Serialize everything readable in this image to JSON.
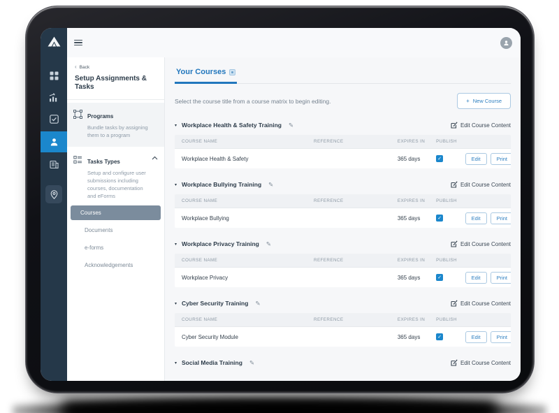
{
  "device": {
    "name": "tablet-mockup"
  },
  "topbar": {
    "menu_icon": "hamburger-icon",
    "avatar_icon": "user-avatar-icon"
  },
  "primary_nav": {
    "logo_icon": "mountain-logo",
    "items": [
      {
        "icon": "dashboard-grid-icon",
        "active": false
      },
      {
        "icon": "reports-chart-icon",
        "active": false
      },
      {
        "icon": "tasks-checkbox-icon",
        "active": false
      },
      {
        "icon": "people-icon",
        "active": true
      },
      {
        "icon": "company-building-icon",
        "active": false
      },
      {
        "icon": "location-pin-icon",
        "active": false
      }
    ]
  },
  "secondary_nav": {
    "back_chevron": "‹",
    "back_label": "Back",
    "title": "Setup Assignments & Tasks",
    "programs": {
      "label": "Programs",
      "description": "Bundle tasks by assigning them to a program"
    },
    "task_types": {
      "label": "Tasks Types",
      "description": "Setup and configure user submissions including courses, documentation and eForms",
      "expanded": true,
      "items": [
        {
          "label": "Courses",
          "active": true
        },
        {
          "label": "Documents",
          "active": false
        },
        {
          "label": "e-forms",
          "active": false
        },
        {
          "label": "Acknowledgements",
          "active": false
        }
      ]
    }
  },
  "main": {
    "tab_label": "Your Courses",
    "intro_text": "Select the course title from a course matrix to begin editing.",
    "new_course_plus": "+",
    "new_course_label": "New Course",
    "edit_course_content_label": "Edit Course Content",
    "table_headers": [
      "COURSE NAME",
      "REFERENCE",
      "EXPIRES IN",
      "PUBLISH"
    ],
    "row_actions": {
      "edit": "Edit",
      "print": "Print"
    },
    "glyphs": {
      "caret": "▾",
      "pencil": "✎",
      "check": "✓"
    },
    "sections": [
      {
        "title": "Workplace Health & Safety Training",
        "rows": [
          {
            "course_name": "Workplace Health & Safety",
            "reference": "",
            "expires_in": "365 days",
            "publish": true
          }
        ]
      },
      {
        "title": "Workplace Bullying Training",
        "rows": [
          {
            "course_name": "Workplace Bullying",
            "reference": "",
            "expires_in": "365 days",
            "publish": true
          }
        ]
      },
      {
        "title": "Workplace Privacy Training",
        "rows": [
          {
            "course_name": "Workplace Privacy",
            "reference": "",
            "expires_in": "365 days",
            "publish": true
          }
        ]
      },
      {
        "title": "Cyber Security Training",
        "rows": [
          {
            "course_name": "Cyber Security Module",
            "reference": "",
            "expires_in": "365 days",
            "publish": true
          }
        ]
      },
      {
        "title": "Social Media Training",
        "rows": []
      }
    ]
  },
  "colors": {
    "sidebar_navy": "#253849",
    "active_blue": "#1b87cc",
    "tab_blue": "#2277bd",
    "selected_pill": "#7b8c9d",
    "content_bg": "#f6f7f9",
    "table_header_bg": "#eff1f4"
  }
}
